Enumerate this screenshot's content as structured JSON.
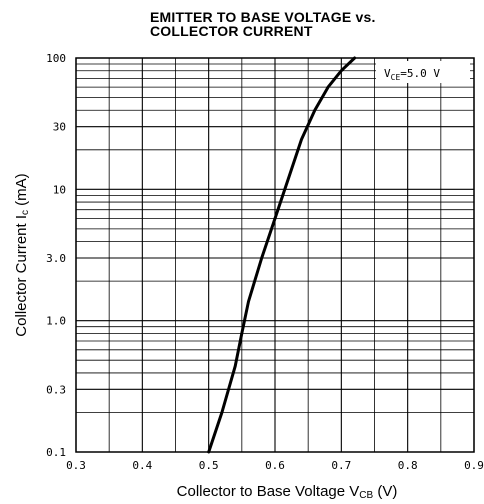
{
  "chart_data": {
    "type": "line",
    "title": "EMITTER TO BASE VOLTAGE vs.",
    "subtitle": "COLLECTOR CURRENT",
    "xlabel": "Collector to Base Voltage V",
    "xlabel_subscript": "CB",
    "xlabel_unit": " (V)",
    "ylabel": "Collector Current I",
    "ylabel_subscript": "c",
    "ylabel_unit": " (mA)",
    "xlim": [
      0.3,
      0.9
    ],
    "ylim": [
      0.1,
      100
    ],
    "y_scale": "log",
    "x_ticks": [
      "0.3",
      "0.4",
      "0.5",
      "0.6",
      "0.7",
      "0.8",
      "0.9"
    ],
    "x_tick_values": [
      0.3,
      0.4,
      0.5,
      0.6,
      0.7,
      0.8,
      0.9
    ],
    "y_ticks": [
      "0.1",
      "0.3",
      "1.0",
      "3.0",
      "10",
      "30",
      "100"
    ],
    "y_tick_values": [
      0.1,
      0.3,
      1.0,
      3.0,
      10,
      30,
      100
    ],
    "grid": true,
    "annotation": {
      "text_main": "V",
      "text_subscript": "CE",
      "text_value": "=5.0  V"
    },
    "series": [
      {
        "x": [
          0.5,
          0.52,
          0.54,
          0.55,
          0.56,
          0.58,
          0.6,
          0.62,
          0.64,
          0.66,
          0.68,
          0.7,
          0.72
        ],
        "y": [
          0.1,
          0.2,
          0.45,
          0.8,
          1.4,
          3.0,
          6.0,
          12,
          24,
          40,
          60,
          80,
          100
        ]
      }
    ]
  }
}
